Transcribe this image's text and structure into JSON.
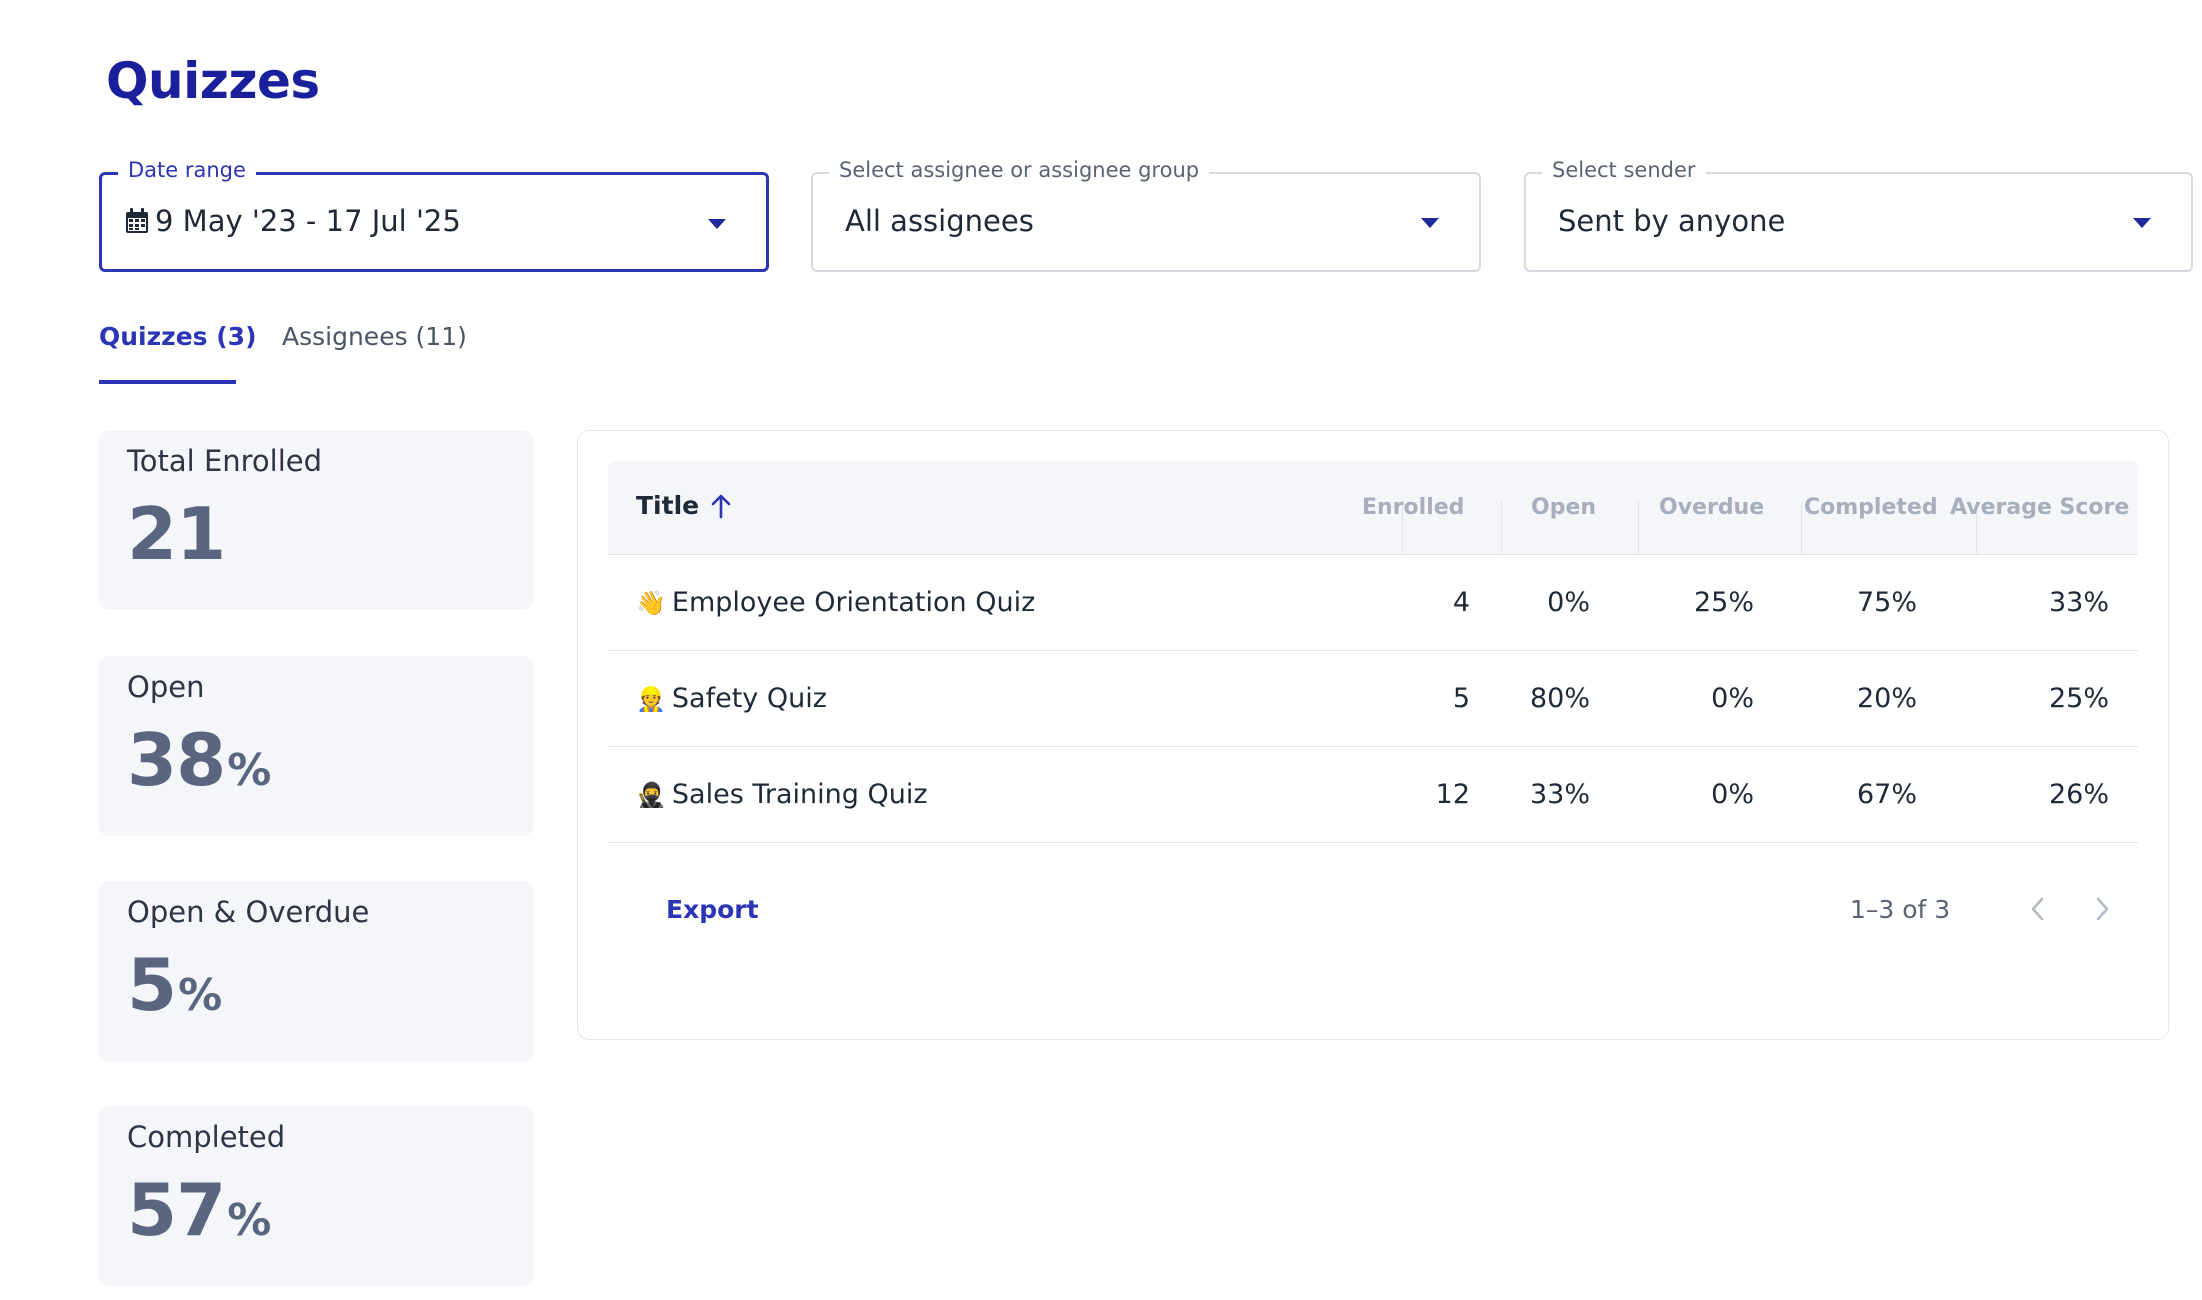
{
  "page": {
    "title": "Quizzes"
  },
  "filters": {
    "date_range": {
      "label": "Date range",
      "value": "9 May '23 - 17 Jul '25",
      "icon": "calendar-icon"
    },
    "assignee": {
      "label": "Select assignee or assignee group",
      "value": "All assignees"
    },
    "sender": {
      "label": "Select sender",
      "value": "Sent by anyone"
    }
  },
  "tabs": [
    {
      "label": "Quizzes (3)",
      "active": true
    },
    {
      "label": "Assignees (11)",
      "active": false
    }
  ],
  "stats": [
    {
      "label": "Total Enrolled",
      "value": "21",
      "unit": ""
    },
    {
      "label": "Open",
      "value": "38",
      "unit": "%"
    },
    {
      "label": "Open & Overdue",
      "value": "5",
      "unit": "%"
    },
    {
      "label": "Completed",
      "value": "57",
      "unit": "%"
    }
  ],
  "table": {
    "columns": {
      "title": "Title",
      "enrolled": "Enrolled",
      "open": "Open",
      "overdue": "Overdue",
      "completed": "Completed",
      "average_score": "Average Score"
    },
    "rows": [
      {
        "emoji": "👋",
        "title": "Employee Orientation Quiz",
        "enrolled": "4",
        "open": "0%",
        "overdue": "25%",
        "completed": "75%",
        "average_score": "33%"
      },
      {
        "emoji": "👷",
        "title": "Safety Quiz",
        "enrolled": "5",
        "open": "80%",
        "overdue": "0%",
        "completed": "20%",
        "average_score": "25%"
      },
      {
        "emoji": "🥷",
        "title": "Sales Training Quiz",
        "enrolled": "12",
        "open": "33%",
        "overdue": "0%",
        "completed": "67%",
        "average_score": "26%"
      }
    ],
    "footer": {
      "export_label": "Export",
      "pagination": "1–3 of 3"
    }
  },
  "colors": {
    "accent": "#2b35b5",
    "title": "#1a1f9c",
    "stat_bg": "#f4f6fa",
    "stat_value": "#5a6680"
  }
}
